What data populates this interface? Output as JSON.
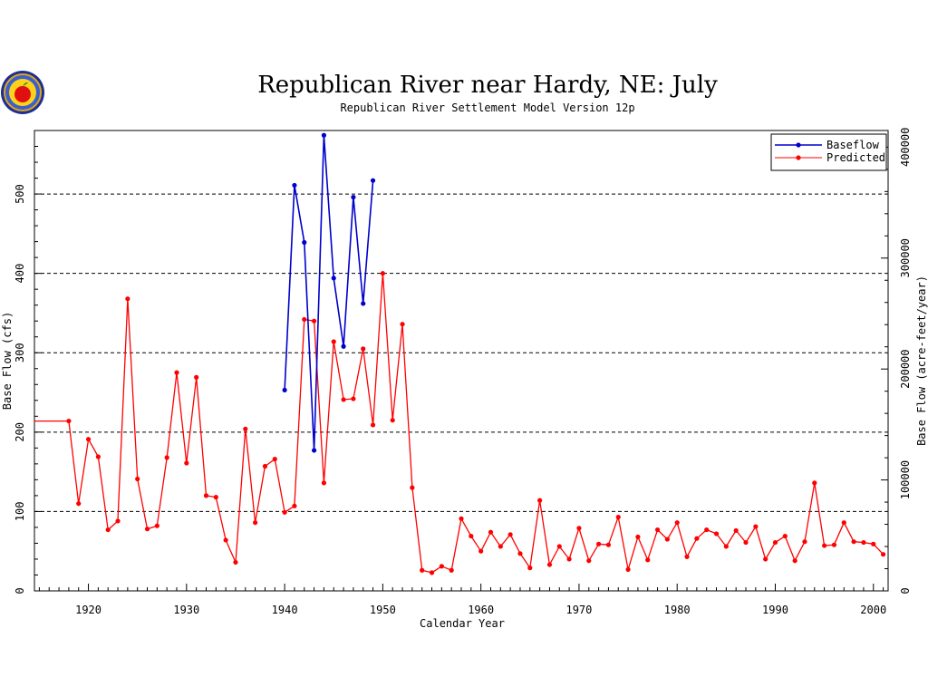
{
  "logo": {
    "name": "apple-seal"
  },
  "chart_data": {
    "type": "line",
    "title": "Republican River near Hardy, NE: July",
    "subtitle": "Republican River Settlement Model Version 12p",
    "xlabel": "Calendar Year",
    "ylabel": "Base Flow (cfs)",
    "ylabel_right": "Base Flow (acre-feet/year)",
    "xlim": [
      1914.5,
      2001.5
    ],
    "ylim": [
      0,
      580
    ],
    "ylim_right": [
      0,
      415000
    ],
    "x_ticks": [
      1920,
      1930,
      1940,
      1950,
      1960,
      1970,
      1980,
      1990,
      2000
    ],
    "y_ticks": [
      0,
      100,
      200,
      300,
      400,
      500
    ],
    "y_ticks_right": [
      0,
      100000,
      200000,
      300000,
      400000
    ],
    "x_tick_labels": [
      "1920",
      "1930",
      "1940",
      "1950",
      "1960",
      "1970",
      "1980",
      "1990",
      "2000"
    ],
    "y_tick_labels": [
      "0",
      "100",
      "200",
      "300",
      "400",
      "500"
    ],
    "y_tick_labels_right": [
      "0",
      "100000",
      "200000",
      "300000",
      "400000"
    ],
    "grid": "horizontal dashed at y=100,200,300,400,500",
    "legend_position": "top-right",
    "legend": [
      {
        "name": "Baseflow",
        "color": "#0000cc"
      },
      {
        "name": "Predicted",
        "color": "#ff0000"
      }
    ],
    "series": [
      {
        "name": "Baseflow",
        "color": "#0000cc",
        "x": [
          1940,
          1941,
          1942,
          1943,
          1944,
          1945,
          1946,
          1947,
          1948,
          1949
        ],
        "y": [
          253,
          511,
          439,
          177,
          574,
          394,
          308,
          496,
          362,
          517
        ]
      },
      {
        "name": "Predicted",
        "color": "#ff0000",
        "x": [
          1914.5,
          1918,
          1919,
          1920,
          1921,
          1922,
          1923,
          1924,
          1925,
          1926,
          1927,
          1928,
          1929,
          1930,
          1931,
          1932,
          1933,
          1934,
          1935,
          1936,
          1937,
          1938,
          1939,
          1940,
          1941,
          1942,
          1943,
          1944,
          1945,
          1946,
          1947,
          1948,
          1949,
          1950,
          1951,
          1952,
          1953,
          1954,
          1955,
          1956,
          1957,
          1958,
          1959,
          1960,
          1961,
          1962,
          1963,
          1964,
          1965,
          1966,
          1967,
          1968,
          1969,
          1970,
          1971,
          1972,
          1973,
          1974,
          1975,
          1976,
          1977,
          1978,
          1979,
          1980,
          1981,
          1982,
          1983,
          1984,
          1985,
          1986,
          1987,
          1988,
          1989,
          1990,
          1991,
          1992,
          1993,
          1994,
          1995,
          1996,
          1997,
          1998,
          1999,
          2000,
          2001
        ],
        "y": [
          214,
          214,
          110,
          191,
          169,
          77,
          88,
          368,
          141,
          78,
          82,
          168,
          275,
          161,
          269,
          120,
          118,
          64,
          36,
          204,
          86,
          157,
          166,
          99,
          107,
          342,
          340,
          136,
          314,
          241,
          242,
          305,
          209,
          400,
          215,
          336,
          130,
          26,
          23,
          31,
          26,
          91,
          69,
          50,
          74,
          56,
          71,
          47,
          29,
          114,
          33,
          56,
          40,
          79,
          38,
          59,
          58,
          93,
          27,
          68,
          39,
          77,
          65,
          86,
          43,
          66,
          77,
          72,
          56,
          76,
          61,
          81,
          40,
          61,
          69,
          38,
          62,
          136,
          57,
          58,
          86,
          62,
          61,
          59,
          46
        ],
        "markers": [
          false,
          true,
          true,
          true,
          true,
          true,
          true,
          true,
          true,
          true,
          true,
          true,
          true,
          true,
          true,
          true,
          true,
          true,
          true,
          true,
          true,
          true,
          true,
          true,
          true,
          true,
          true,
          true,
          true,
          true,
          true,
          true,
          true,
          true,
          true,
          true,
          true,
          true,
          true,
          true,
          true,
          true,
          true,
          true,
          true,
          true,
          true,
          true,
          true,
          true,
          true,
          true,
          true,
          true,
          true,
          true,
          true,
          true,
          true,
          true,
          true,
          true,
          true,
          true,
          true,
          true,
          true,
          true,
          true,
          true,
          true,
          true,
          true,
          true,
          true,
          true,
          true,
          true,
          true,
          true,
          true,
          true,
          true,
          true,
          true
        ]
      }
    ]
  }
}
